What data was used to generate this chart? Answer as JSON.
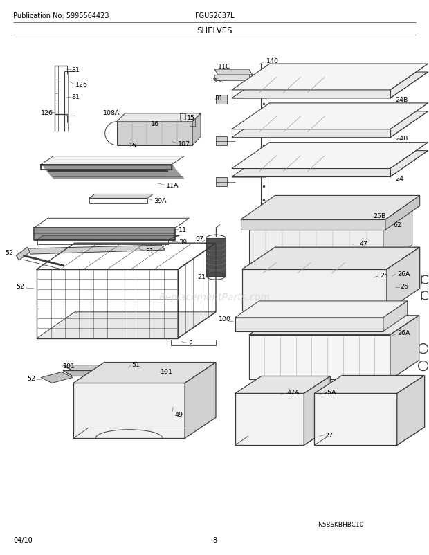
{
  "title": "SHELVES",
  "pub_no": "Publication No: 5995564423",
  "model": "FGUS2637L",
  "date": "04/10",
  "page": "8",
  "watermark_text": "ReplacementParts.com",
  "diagram_id": "N58SKBHBC10",
  "bg_color": "#ffffff",
  "lc": "#3a3a3a",
  "lc_light": "#888888",
  "label_fs": 6.8,
  "header_fs": 7.0,
  "title_fs": 8.5
}
